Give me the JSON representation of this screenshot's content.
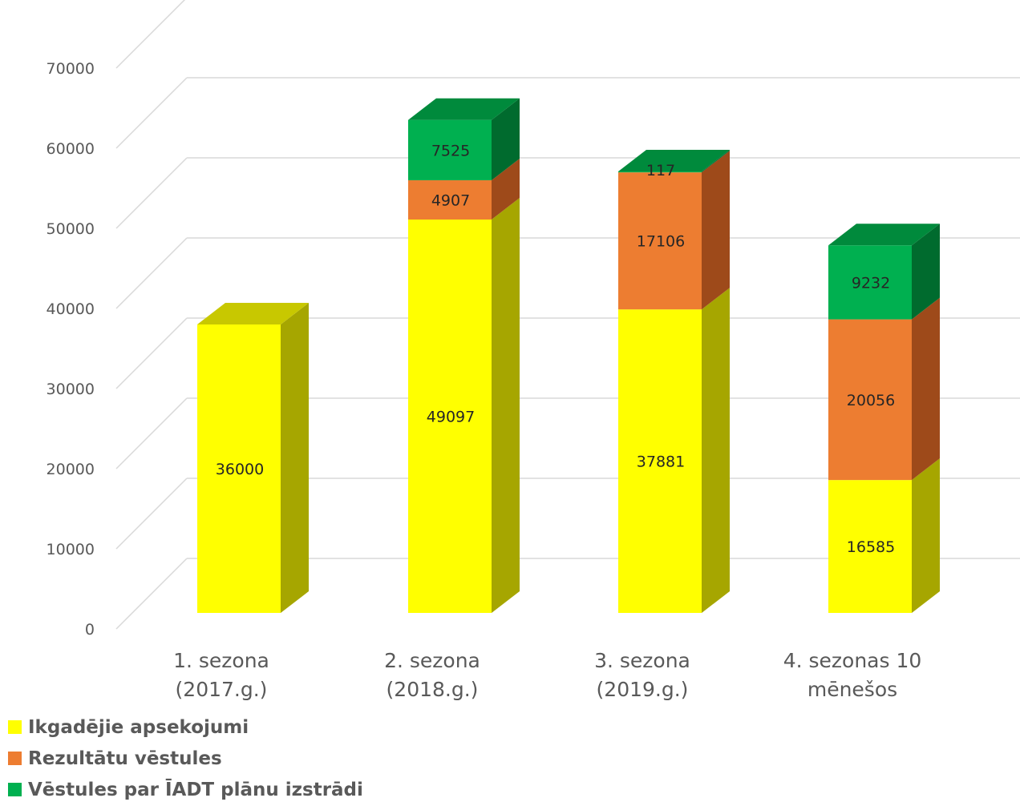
{
  "chart_data": {
    "type": "bar",
    "stacked": true,
    "three_d": true,
    "categories": [
      "1. sezona\n(2017.g.)",
      "2. sezona\n(2018.g.)",
      "3. sezona\n(2019.g.)",
      "4. sezonas 10\nmēnešos"
    ],
    "series": [
      {
        "name": "Ikgadējie apsekojumi",
        "values": [
          36000,
          49097,
          37881,
          16585
        ],
        "color": "#FFFF00",
        "side_color": "#A6A600",
        "top_color": "#C8C800"
      },
      {
        "name": "Rezultātu vēstules",
        "values": [
          null,
          4907,
          17106,
          20056
        ],
        "color": "#ED7D31",
        "side_color": "#9E4A1A",
        "top_color": "#B85C22"
      },
      {
        "name": "Vēstules par ĪADT plānu izstrādi",
        "values": [
          null,
          7525,
          117,
          9232
        ],
        "color": "#00B050",
        "side_color": "#006B2E",
        "top_color": "#008A3C"
      }
    ],
    "ylim": [
      0,
      70000
    ],
    "yticks": [
      0,
      10000,
      20000,
      30000,
      40000,
      50000,
      60000,
      70000
    ],
    "grid": true,
    "legend_position": "bottom-left"
  }
}
